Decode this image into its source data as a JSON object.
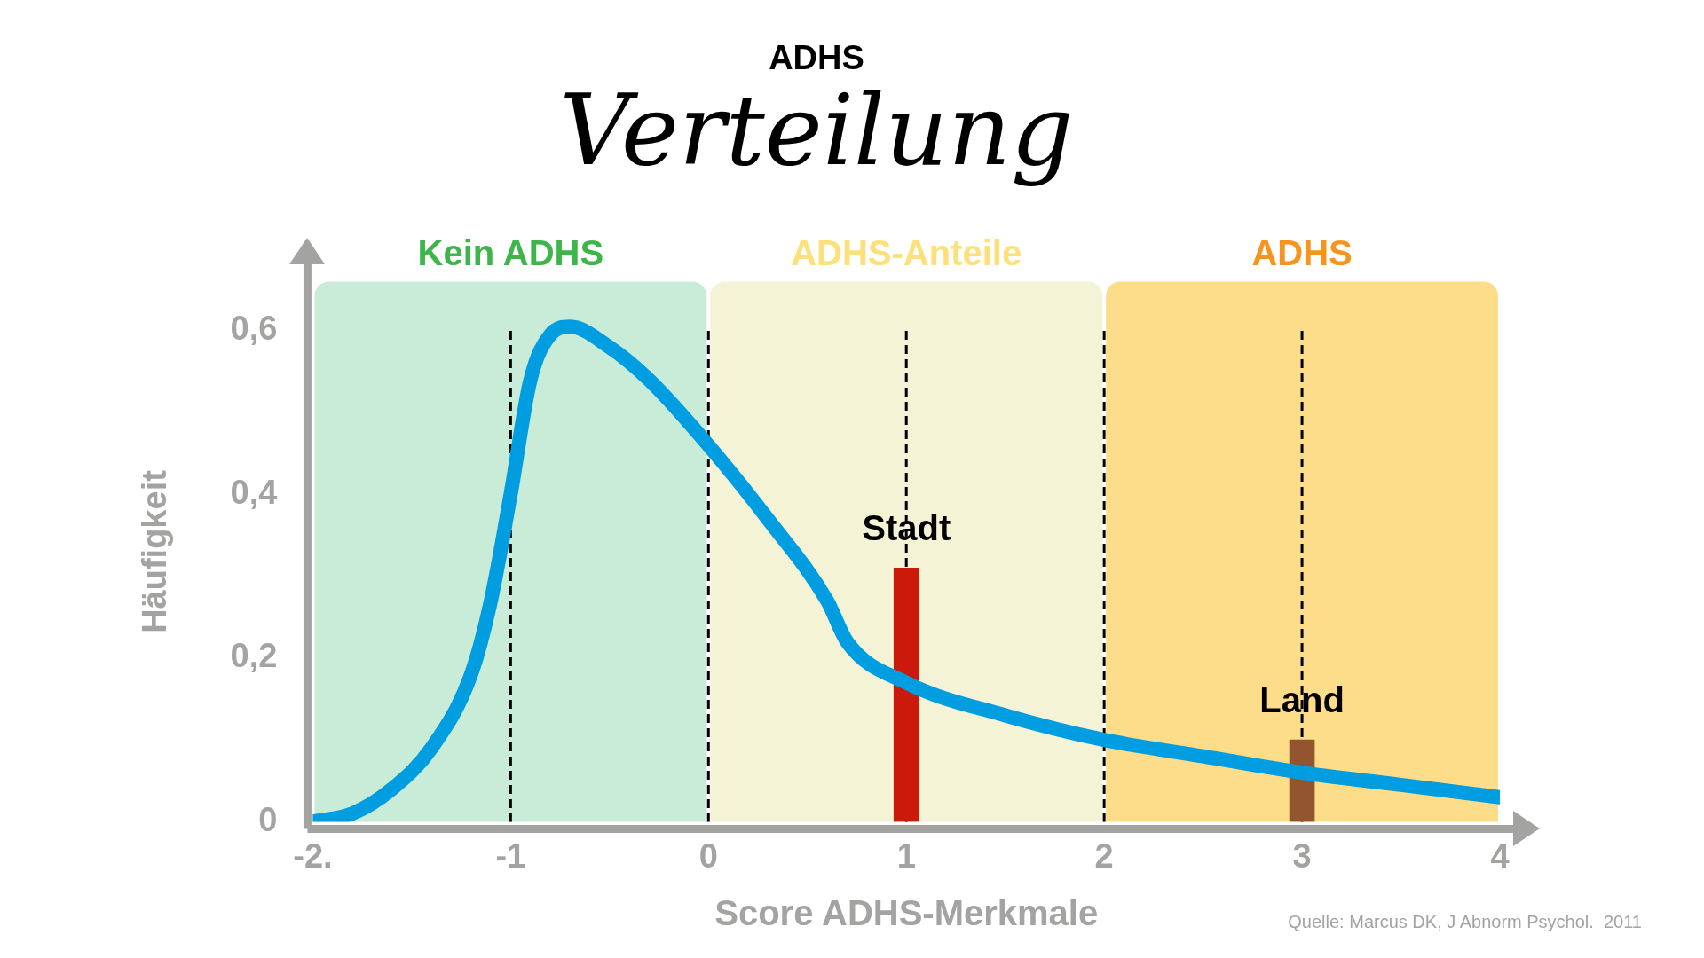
{
  "chart_data": {
    "type": "line",
    "title": "ADHS",
    "subtitle": "Verteilung",
    "xlabel": "Score ADHS-Merkmale",
    "ylabel": "Häufigkeit",
    "xlim": [
      -2,
      4
    ],
    "xticks": [
      {
        "value": -2,
        "label": "-2."
      },
      -1,
      0,
      1,
      2,
      3,
      4
    ],
    "ylim": [
      0,
      0.66
    ],
    "yticks": [
      0,
      {
        "value": 0.2,
        "label": "0,2"
      },
      {
        "value": 0.4,
        "label": "0,4"
      },
      {
        "value": 0.6,
        "label": "0,6"
      }
    ],
    "grid": false,
    "legend": false,
    "marker": "none",
    "series": [
      {
        "color": "#009ee0",
        "x": [
          -2,
          -1.8,
          -1.6,
          -1.4,
          -1.2,
          -1.1,
          -1,
          -0.9,
          -0.8,
          -0.7,
          -0.5,
          -0.3,
          0,
          0.3,
          0.6,
          0.7,
          1,
          1.5,
          2,
          2.5,
          3,
          3.5,
          4
        ],
        "values": [
          0,
          0.01,
          0.04,
          0.09,
          0.18,
          0.27,
          0.4,
          0.54,
          0.595,
          0.605,
          0.58,
          0.54,
          0.46,
          0.37,
          0.27,
          0.22,
          0.17,
          0.13,
          0.1,
          0.08,
          0.06,
          0.045,
          0.03
        ]
      },
      {
        "type": "bar",
        "x": [
          1,
          3
        ],
        "values": [
          0.31,
          0.1
        ],
        "colors": [
          "#cc1a0a",
          "#92552f"
        ]
      }
    ],
    "bands": [
      {
        "axis": "x",
        "from": -2,
        "to": 0,
        "label": "Kein ADHS",
        "color": "#c9ecd8"
      },
      {
        "axis": "x",
        "from": 0,
        "to": 2,
        "label": "ADHS-Anteile",
        "color": "#f5f3d6"
      },
      {
        "axis": "x",
        "from": 2,
        "to": 4,
        "label": "ADHS",
        "color": "#fddc8a"
      }
    ],
    "ref_lines": [
      {
        "axis": "x",
        "value": -1,
        "color": "#000000",
        "line_style": "dashed"
      },
      {
        "axis": "x",
        "value": 0,
        "color": "#000000",
        "line_style": "dashed"
      },
      {
        "axis": "x",
        "value": 1,
        "color": "#000000",
        "line_style": "dashed"
      },
      {
        "axis": "x",
        "value": 2,
        "color": "#000000",
        "line_style": "dashed"
      },
      {
        "axis": "x",
        "value": 3,
        "color": "#000000",
        "line_style": "dashed"
      }
    ],
    "annotations": [
      {
        "text": "Stadt",
        "x": 1,
        "y": 0.31
      },
      {
        "text": "Land",
        "x": 3,
        "y": 0.1
      },
      "Quelle: Marcus DK, J Abnorm Psychol.  2011"
    ]
  }
}
